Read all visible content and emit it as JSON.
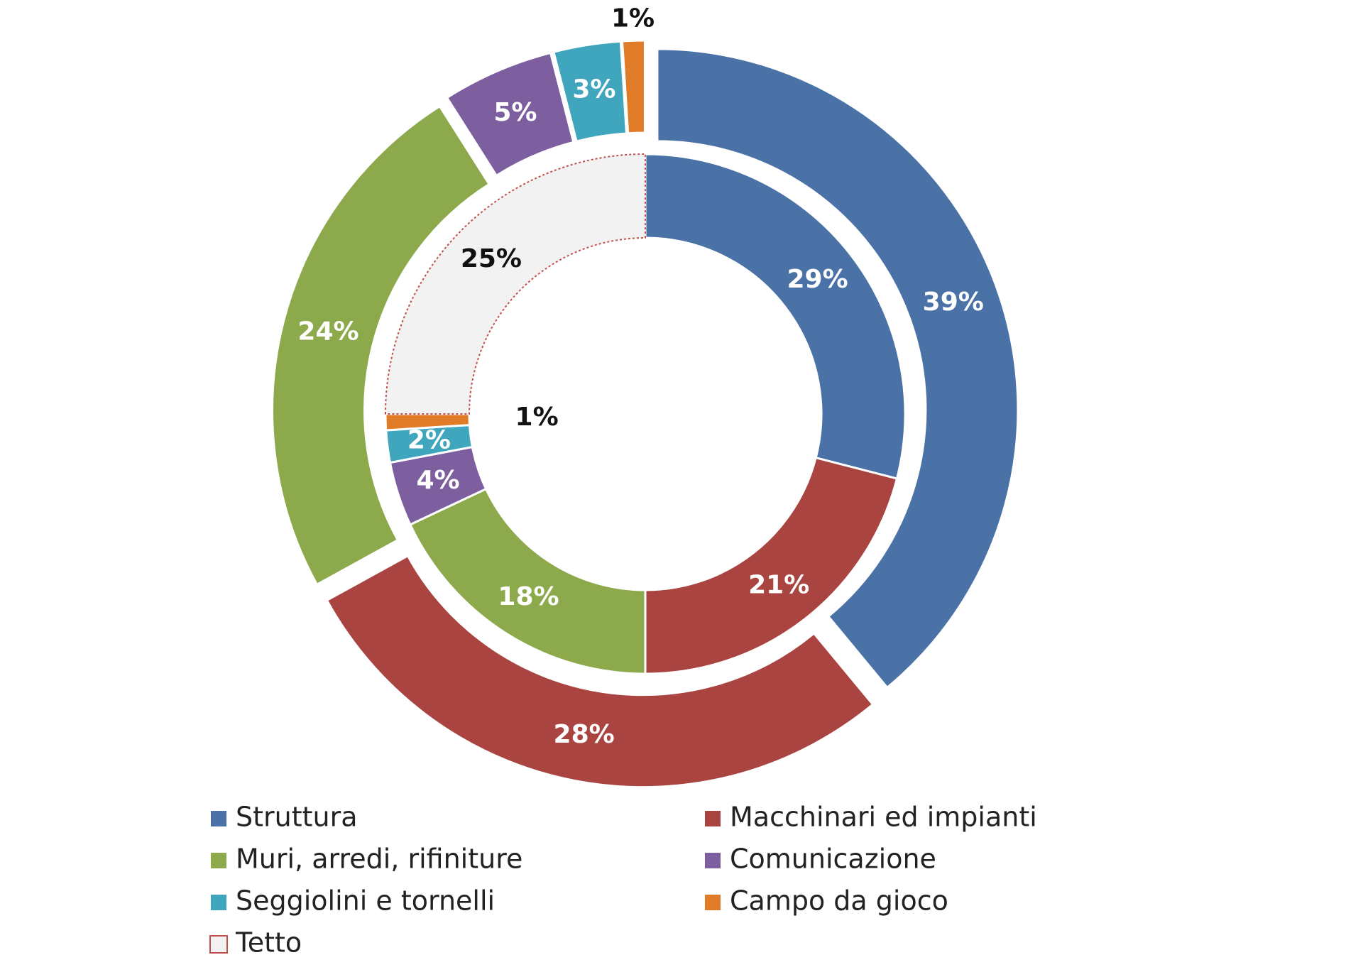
{
  "chart_data": {
    "type": "donut",
    "categories": [
      "Struttura",
      "Macchinari ed impianti",
      "Muri, arredi, rifiniture",
      "Comunicazione",
      "Seggiolini e tornelli",
      "Campo da gioco",
      "Tetto"
    ],
    "colors": [
      "#4a72a6",
      "#a94441",
      "#8caa4c",
      "#7d5fa0",
      "#40a6be",
      "#e07b28",
      "#f2f2f2"
    ],
    "series": [
      {
        "values": [
          29,
          21,
          18,
          4,
          2,
          1,
          25
        ],
        "value_labels": [
          "29%",
          "21%",
          "18%",
          "4%",
          "2%",
          "1%",
          "25%"
        ]
      },
      {
        "values": [
          39,
          28,
          24,
          5,
          3,
          1,
          null
        ],
        "value_labels": [
          "39%",
          "28%",
          "24%",
          "5%",
          "3%",
          "1%",
          null
        ]
      }
    ],
    "legend": "bottom"
  }
}
